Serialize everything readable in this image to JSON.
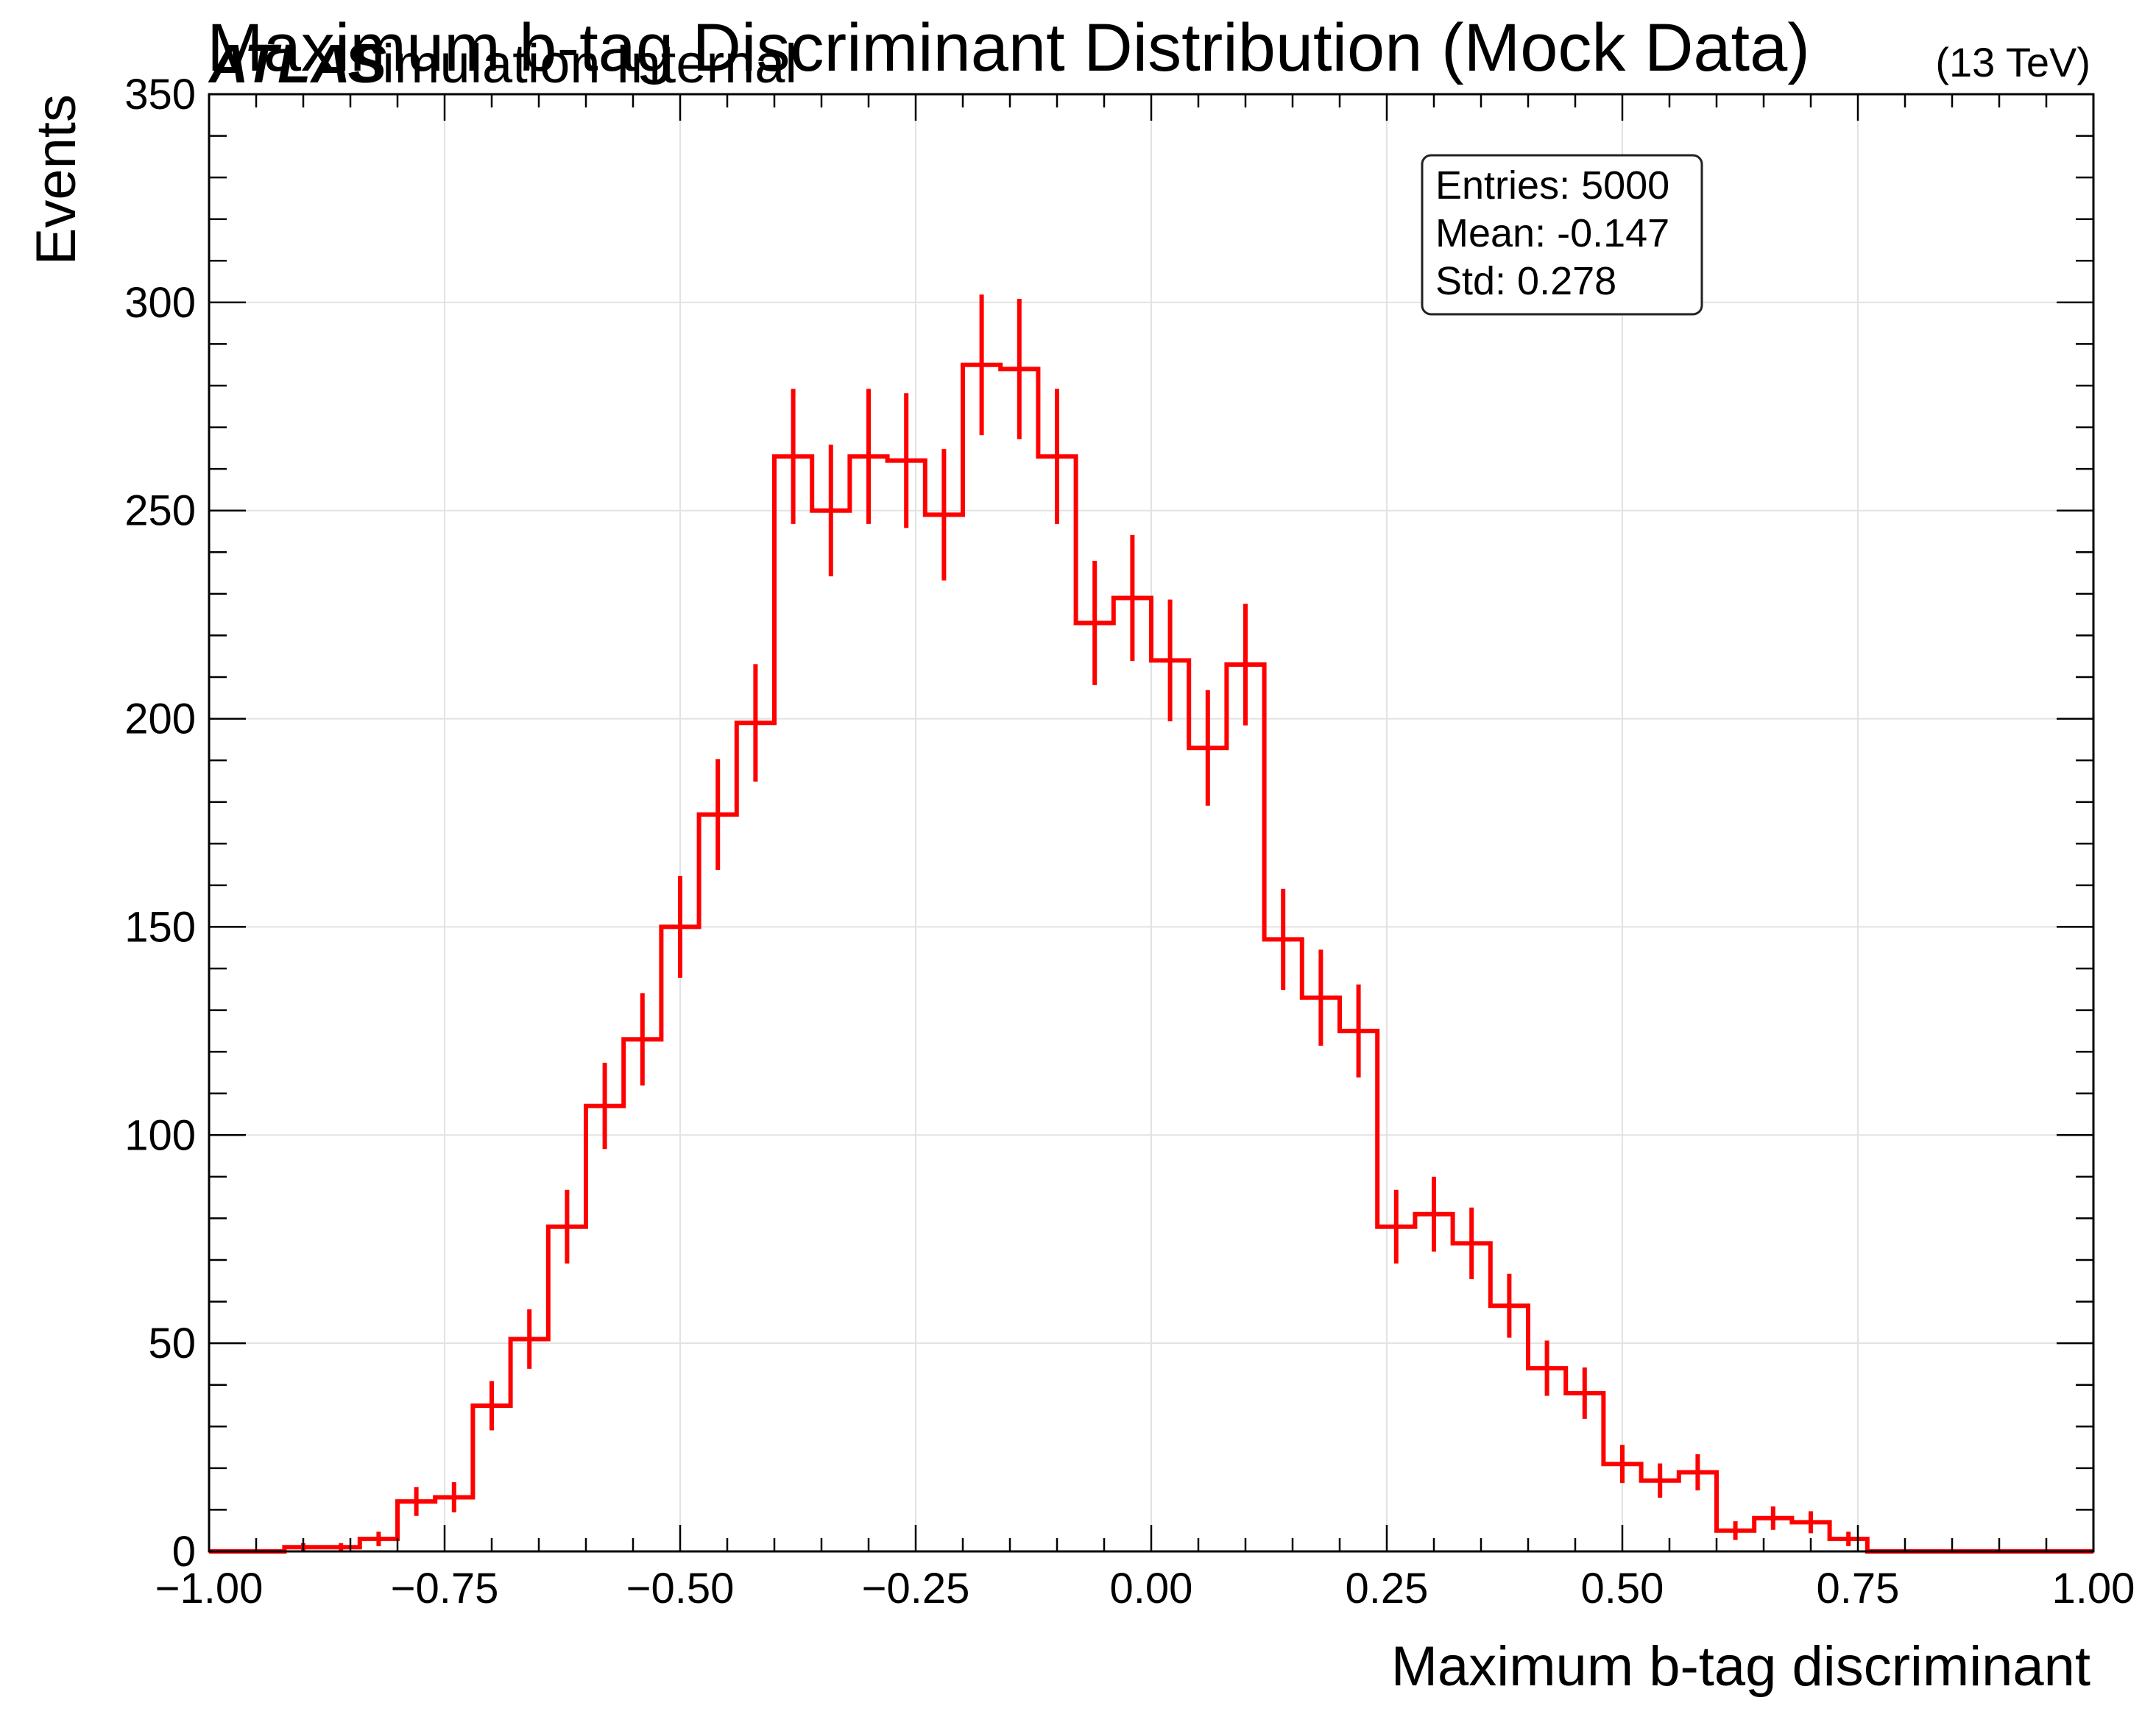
{
  "chart_data": {
    "type": "histogram",
    "title": "Maximum b-tag Discriminant Distribution (Mock Data)",
    "experiment_label": "ATLAS",
    "experiment_sublabel": "Simulation Internal",
    "energy_label": "(13 TeV)",
    "xlabel": "Maximum b-tag discriminant",
    "ylabel": "Events",
    "xlim": [
      -1.0,
      1.0
    ],
    "ylim": [
      0,
      350
    ],
    "x_ticks": [
      "−1.00",
      "−0.75",
      "−0.50",
      "−0.25",
      "0.00",
      "0.25",
      "0.50",
      "0.75",
      "1.00"
    ],
    "y_ticks": [
      "0",
      "50",
      "100",
      "150",
      "200",
      "250",
      "300",
      "350"
    ],
    "grid": true,
    "bin_edges_start": -1.0,
    "bin_width": 0.04,
    "counts": [
      0,
      0,
      1,
      1,
      3,
      12,
      13,
      35,
      51,
      78,
      107,
      123,
      150,
      177,
      199,
      263,
      250,
      263,
      262,
      249,
      285,
      284,
      263,
      223,
      229,
      214,
      193,
      213,
      147,
      133,
      125,
      78,
      81,
      74,
      59,
      44,
      38,
      21,
      17,
      19,
      5,
      8,
      7,
      3,
      0,
      0,
      0,
      0,
      0,
      0
    ],
    "series_color": "#ff0000",
    "stats_box": {
      "entries": "Entries: 5000",
      "mean": "Mean: -0.147",
      "std": "Std: 0.278",
      "position": "top-right"
    }
  }
}
